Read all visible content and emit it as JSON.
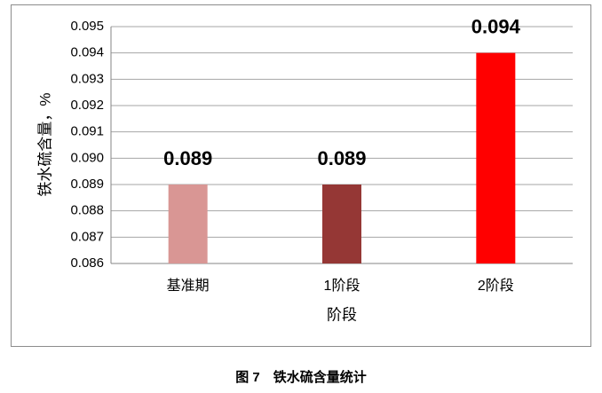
{
  "chart_data": {
    "type": "bar",
    "caption": "图 7　铁水硫含量统计",
    "x_label": "阶段",
    "y_label": "铁水硫含量，%",
    "categories": [
      "基准期",
      "1阶段",
      "2阶段"
    ],
    "values": [
      0.089,
      0.089,
      0.094
    ],
    "colors": [
      "#d99694",
      "#953735",
      "#ff0000"
    ],
    "ylim": [
      0.086,
      0.095
    ],
    "yticks": [
      0.086,
      0.087,
      0.088,
      0.089,
      {
        "value": 0.09,
        "label": "0.090"
      },
      0.091,
      0.092,
      0.093,
      0.094,
      0.095
    ],
    "grid": true
  }
}
